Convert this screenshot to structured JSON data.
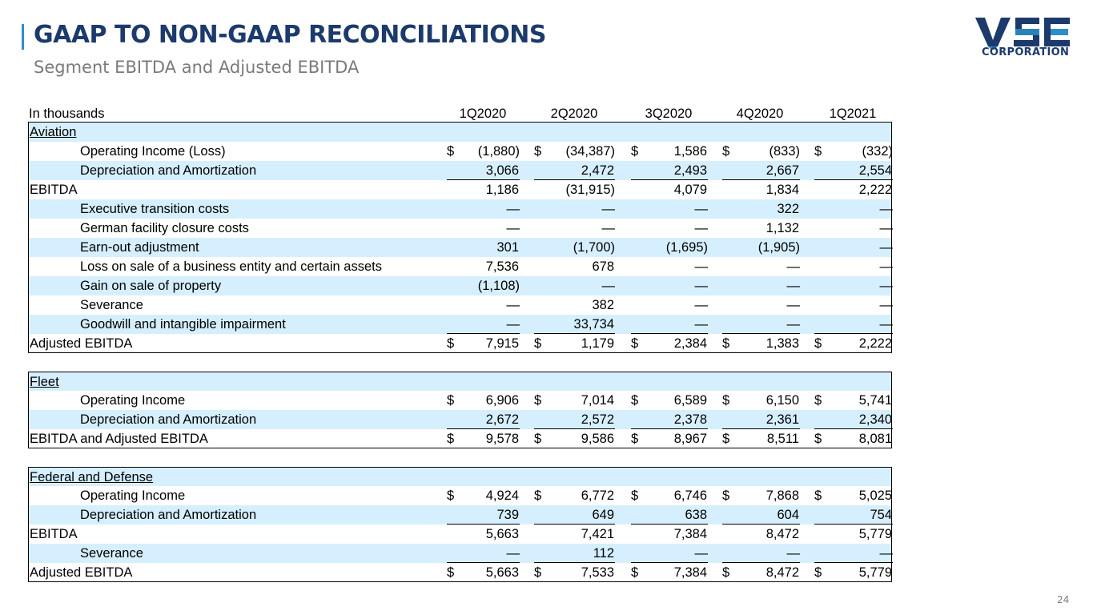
{
  "header": {
    "title": "GAAP TO NON-GAAP RECONCILIATIONS",
    "subtitle": "Segment EBITDA and Adjusted EBITDA",
    "logo_text": "CORPORATION",
    "logo_mark": "VSE"
  },
  "page_number": "24",
  "table": {
    "unit_label": "In thousands",
    "columns": [
      "1Q2020",
      "2Q2020",
      "3Q2020",
      "4Q2020",
      "1Q2021"
    ],
    "sections": [
      {
        "name": "Aviation",
        "rows": [
          {
            "label": "Operating Income (Loss)",
            "values": [
              "(1,880)",
              "(34,387)",
              "1,586",
              "(833)",
              "(332)"
            ]
          },
          {
            "label": "Depreciation and Amortization",
            "values": [
              "3,066",
              "2,472",
              "2,493",
              "2,667",
              "2,554"
            ]
          },
          {
            "label": "EBITDA",
            "values": [
              "1,186",
              "(31,915)",
              "4,079",
              "1,834",
              "2,222"
            ]
          },
          {
            "label": "Executive transition costs",
            "values": [
              "—",
              "—",
              "—",
              "322",
              "—"
            ]
          },
          {
            "label": "German facility closure costs",
            "values": [
              "—",
              "—",
              "—",
              "1,132",
              "—"
            ]
          },
          {
            "label": "Earn-out adjustment",
            "values": [
              "301",
              "(1,700)",
              "(1,695)",
              "(1,905)",
              "—"
            ]
          },
          {
            "label": "Loss on sale of a business entity and certain assets",
            "values": [
              "7,536",
              "678",
              "—",
              "—",
              "—"
            ]
          },
          {
            "label": "Gain on sale of property",
            "values": [
              "(1,108)",
              "—",
              "—",
              "—",
              "—"
            ]
          },
          {
            "label": "Severance",
            "values": [
              "—",
              "382",
              "—",
              "—",
              "—"
            ]
          },
          {
            "label": "Goodwill and intangible impairment",
            "values": [
              "—",
              "33,734",
              "—",
              "—",
              "—"
            ]
          },
          {
            "label": "Adjusted EBITDA",
            "values": [
              "7,915",
              "1,179",
              "2,384",
              "1,383",
              "2,222"
            ]
          }
        ]
      },
      {
        "name": "Fleet",
        "rows": [
          {
            "label": "Operating Income",
            "values": [
              "6,906",
              "7,014",
              "6,589",
              "6,150",
              "5,741"
            ]
          },
          {
            "label": "Depreciation and Amortization",
            "values": [
              "2,672",
              "2,572",
              "2,378",
              "2,361",
              "2,340"
            ]
          },
          {
            "label": "EBITDA and Adjusted EBITDA",
            "values": [
              "9,578",
              "9,586",
              "8,967",
              "8,511",
              "8,081"
            ]
          }
        ]
      },
      {
        "name": "Federal and Defense",
        "rows": [
          {
            "label": "Operating Income",
            "values": [
              "4,924",
              "6,772",
              "6,746",
              "7,868",
              "5,025"
            ]
          },
          {
            "label": "Depreciation and Amortization",
            "values": [
              "739",
              "649",
              "638",
              "604",
              "754"
            ]
          },
          {
            "label": "EBITDA",
            "values": [
              "5,663",
              "7,421",
              "7,384",
              "8,472",
              "5,779"
            ]
          },
          {
            "label": "Severance",
            "values": [
              "—",
              "112",
              "—",
              "—",
              "—"
            ]
          },
          {
            "label": "Adjusted EBITDA",
            "values": [
              "5,663",
              "7,533",
              "7,384",
              "8,472",
              "5,779"
            ]
          }
        ]
      }
    ],
    "currency_symbol": "$"
  },
  "colors": {
    "title": "#1c3a6c",
    "accent": "#2e8fc8",
    "row_highlight": "#d6efff"
  }
}
